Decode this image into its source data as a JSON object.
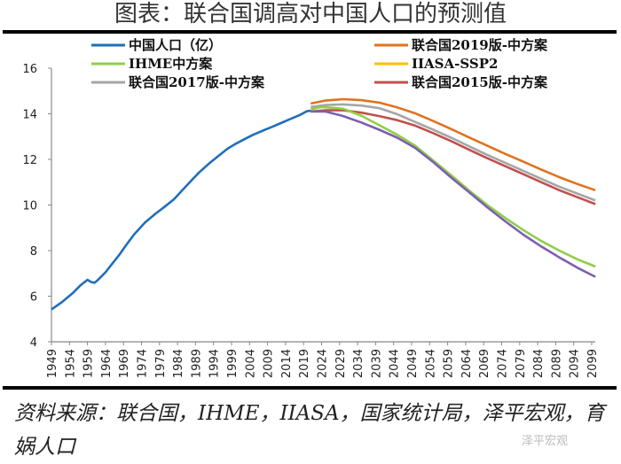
{
  "title": "图表：联合国调高对中国人口的预测值",
  "source": "资料来源：联合国，IHME，IIASA，国家统计局，泽平宏观，育娲人口",
  "watermark": "泽平宏观",
  "chart_data": {
    "type": "line",
    "title": "图表：联合国调高对中国人口的预测值",
    "xlabel": "",
    "ylabel": "",
    "xlim": [
      1949,
      2100
    ],
    "ylim": [
      4,
      16
    ],
    "yticks": [
      4,
      6,
      8,
      10,
      12,
      14,
      16
    ],
    "xticks": [
      1949,
      1954,
      1959,
      1964,
      1969,
      1974,
      1979,
      1984,
      1989,
      1994,
      1999,
      2004,
      2009,
      2014,
      2019,
      2024,
      2029,
      2034,
      2039,
      2044,
      2049,
      2054,
      2059,
      2064,
      2069,
      2074,
      2079,
      2084,
      2089,
      2094,
      2099
    ],
    "grid": false,
    "legend_position": "top",
    "series": [
      {
        "name": "中国人口（亿）",
        "color": "#1f6fb8",
        "legend_color": "#1f6fb8",
        "x": [
          1949,
          1952,
          1955,
          1957,
          1959,
          1960,
          1961,
          1962,
          1964,
          1966,
          1968,
          1970,
          1972,
          1975,
          1978,
          1980,
          1983,
          1985,
          1988,
          1990,
          1993,
          1995,
          1998,
          2000,
          2003,
          2005,
          2008,
          2010,
          2013,
          2015,
          2018,
          2020,
          2021
        ],
        "y": [
          5.42,
          5.75,
          6.15,
          6.47,
          6.72,
          6.62,
          6.59,
          6.73,
          7.05,
          7.45,
          7.85,
          8.3,
          8.72,
          9.24,
          9.63,
          9.87,
          10.25,
          10.59,
          11.1,
          11.43,
          11.85,
          12.11,
          12.48,
          12.67,
          12.92,
          13.08,
          13.28,
          13.41,
          13.61,
          13.75,
          13.95,
          14.12,
          14.13
        ]
      },
      {
        "name": "联合国2019版-中方案",
        "color": "#e0731f",
        "legend_color": "#e0731f",
        "x": [
          2021,
          2025,
          2030,
          2035,
          2040,
          2045,
          2050,
          2055,
          2060,
          2065,
          2070,
          2075,
          2080,
          2085,
          2090,
          2095,
          2100
        ],
        "y": [
          14.45,
          14.58,
          14.64,
          14.6,
          14.49,
          14.28,
          14.02,
          13.68,
          13.33,
          12.96,
          12.6,
          12.24,
          11.9,
          11.55,
          11.22,
          10.92,
          10.65
        ]
      },
      {
        "name": "IHME中方案",
        "color": "#8fce4a",
        "legend_color": "#8fce4a",
        "x": [
          2021,
          2024,
          2030,
          2035,
          2040,
          2045,
          2050,
          2055,
          2060,
          2065,
          2070,
          2075,
          2080,
          2085,
          2090,
          2095,
          2100
        ],
        "y": [
          14.2,
          14.3,
          14.22,
          13.92,
          13.5,
          13.08,
          12.6,
          11.95,
          11.3,
          10.63,
          10.0,
          9.43,
          8.9,
          8.42,
          8.0,
          7.62,
          7.3
        ]
      },
      {
        "name": "IIASA-SSP2",
        "color": "#7c5fb0",
        "legend_color": "#ffc000",
        "x": [
          2021,
          2025,
          2030,
          2035,
          2040,
          2045,
          2050,
          2055,
          2060,
          2065,
          2070,
          2075,
          2080,
          2085,
          2090,
          2095,
          2100
        ],
        "y": [
          14.1,
          14.1,
          13.9,
          13.62,
          13.3,
          12.95,
          12.5,
          11.88,
          11.2,
          10.55,
          9.9,
          9.28,
          8.7,
          8.18,
          7.7,
          7.25,
          6.85
        ]
      },
      {
        "name": "联合国2017版-中方案",
        "color": "#a6a6a6",
        "legend_color": "#a6a6a6",
        "x": [
          2021,
          2025,
          2030,
          2035,
          2040,
          2045,
          2050,
          2055,
          2060,
          2065,
          2070,
          2075,
          2080,
          2085,
          2090,
          2095,
          2100
        ],
        "y": [
          14.3,
          14.38,
          14.41,
          14.36,
          14.25,
          13.98,
          13.64,
          13.3,
          12.95,
          12.57,
          12.2,
          11.85,
          11.5,
          11.15,
          10.8,
          10.5,
          10.2
        ]
      },
      {
        "name": "联合国2015版-中方案",
        "color": "#c0504d",
        "legend_color": "#c0504d",
        "x": [
          2021,
          2025,
          2030,
          2035,
          2040,
          2045,
          2050,
          2055,
          2060,
          2065,
          2070,
          2075,
          2080,
          2085,
          2090,
          2095,
          2100
        ],
        "y": [
          14.1,
          14.15,
          14.15,
          14.05,
          13.9,
          13.72,
          13.48,
          13.15,
          12.8,
          12.42,
          12.05,
          11.7,
          11.35,
          11.0,
          10.65,
          10.34,
          10.04
        ]
      }
    ]
  }
}
